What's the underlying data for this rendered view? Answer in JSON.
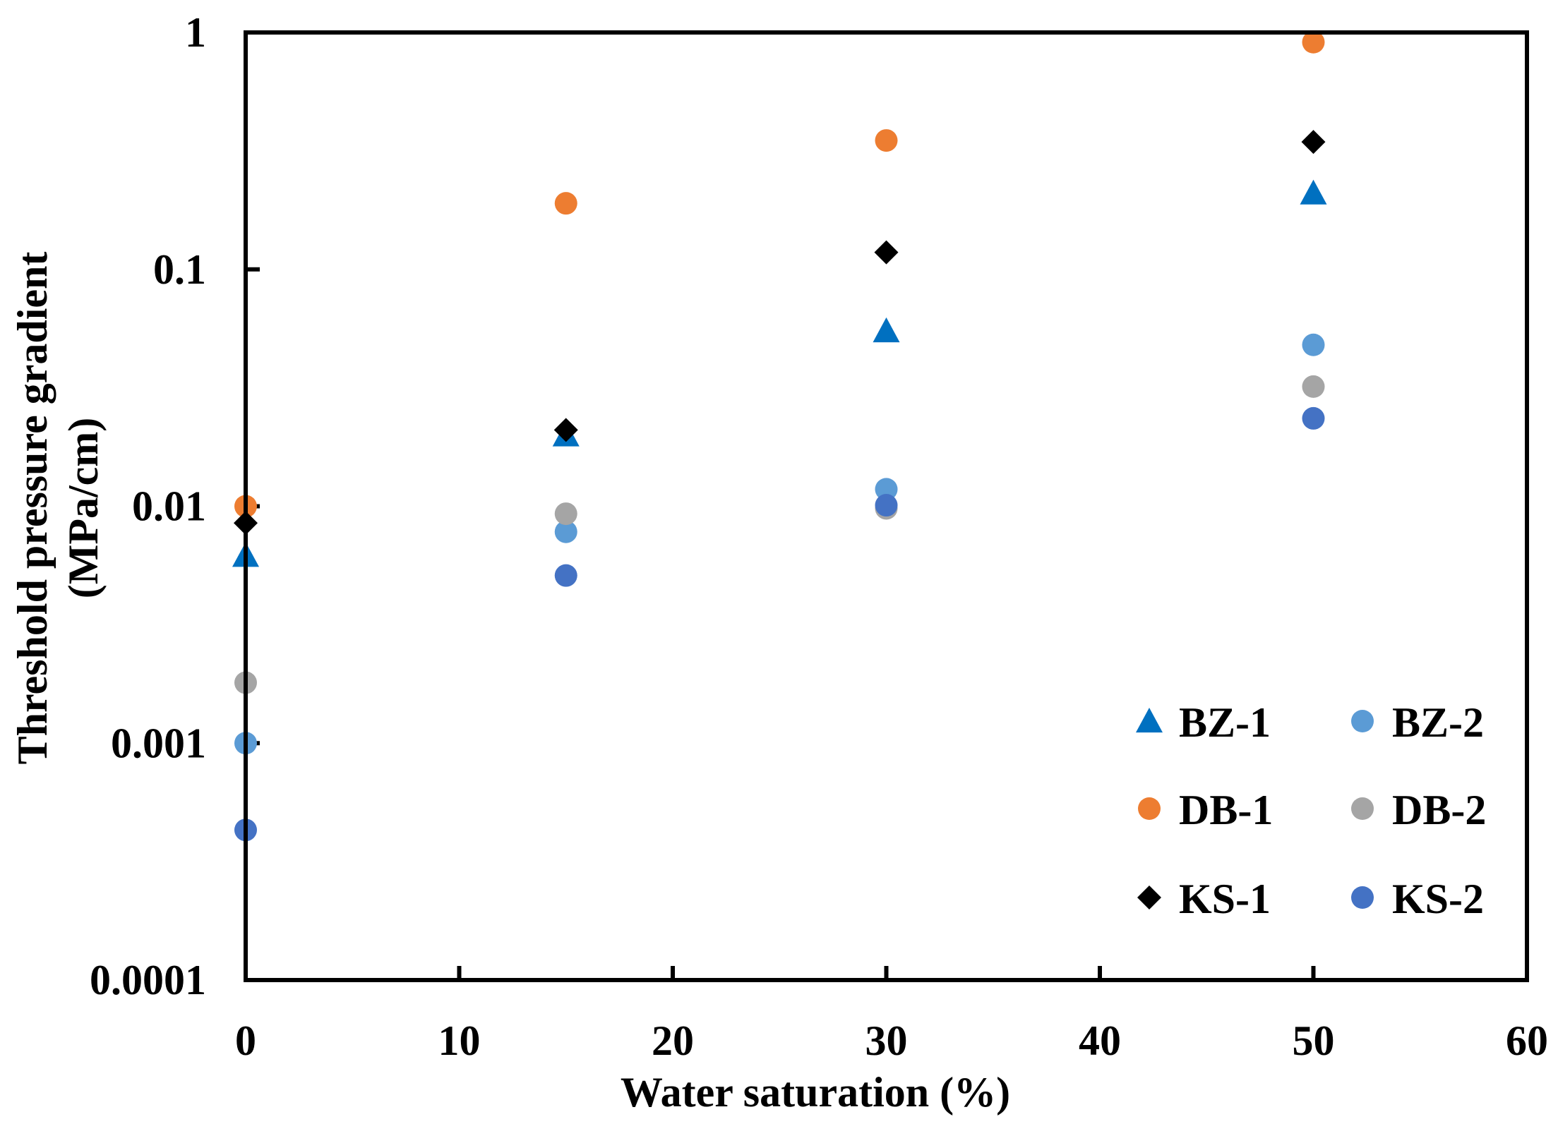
{
  "chart_data": {
    "type": "scatter",
    "title": "",
    "xlabel": "Water saturation   (%)",
    "ylabel_line1": "Threshold  pressure  gradient",
    "ylabel_line2": "(MPa/cm)",
    "xlim": [
      0,
      60
    ],
    "ylim": [
      0.0001,
      1
    ],
    "yscale": "log",
    "grid": false,
    "legend_position": "bottom-right",
    "x_ticks": [
      0,
      10,
      20,
      30,
      40,
      50,
      60
    ],
    "x_tick_labels": [
      "0",
      "10",
      "20",
      "30",
      "40",
      "50",
      "60"
    ],
    "y_ticks": [
      0.0001,
      0.001,
      0.01,
      0.1,
      1
    ],
    "y_tick_labels": [
      "0.0001",
      "0.001",
      "0.01",
      "0.1",
      "1"
    ],
    "series": [
      {
        "name": "BZ-1",
        "marker": "triangle",
        "color": "#0070C0",
        "points": [
          [
            0,
            0.0062
          ],
          [
            15,
            0.02
          ],
          [
            30,
            0.055
          ],
          [
            50,
            0.21
          ]
        ]
      },
      {
        "name": "BZ-2",
        "marker": "circle",
        "color": "#5B9BD5",
        "points": [
          [
            0,
            0.001
          ],
          [
            15,
            0.0078
          ],
          [
            30,
            0.0118
          ],
          [
            50,
            0.048
          ]
        ]
      },
      {
        "name": "DB-1",
        "marker": "circle",
        "color": "#ED7D31",
        "points": [
          [
            0,
            0.01
          ],
          [
            15,
            0.19
          ],
          [
            30,
            0.35
          ],
          [
            50,
            0.91
          ]
        ]
      },
      {
        "name": "DB-2",
        "marker": "circle",
        "color": "#A5A5A5",
        "points": [
          [
            0,
            0.0018
          ],
          [
            15,
            0.0093
          ],
          [
            30,
            0.0098
          ],
          [
            50,
            0.032
          ]
        ]
      },
      {
        "name": "KS-1",
        "marker": "diamond",
        "color": "#000000",
        "points": [
          [
            0,
            0.0085
          ],
          [
            15,
            0.021
          ],
          [
            30,
            0.118
          ],
          [
            50,
            0.345
          ]
        ]
      },
      {
        "name": "KS-2",
        "marker": "circle",
        "color": "#4472C4",
        "points": [
          [
            0,
            0.00043
          ],
          [
            15,
            0.0051
          ],
          [
            30,
            0.0101
          ],
          [
            50,
            0.0235
          ]
        ]
      }
    ]
  }
}
